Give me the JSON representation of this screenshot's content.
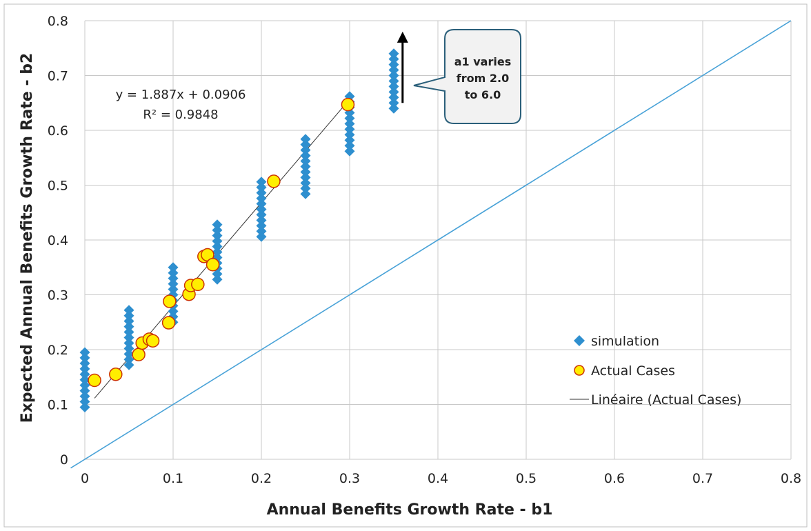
{
  "chart_data": {
    "type": "scatter",
    "xlabel": "Annual Benefits Growth Rate - b1",
    "ylabel": "Expected Annual Benefits Growth Rate - b2",
    "xlim": [
      0,
      0.8
    ],
    "ylim": [
      0,
      0.8
    ],
    "x_ticks": [
      0,
      0.1,
      0.2,
      0.3,
      0.4,
      0.5,
      0.6,
      0.7,
      0.8
    ],
    "y_ticks": [
      0,
      0.1,
      0.2,
      0.3,
      0.4,
      0.5,
      0.6,
      0.7,
      0.8
    ],
    "x_tick_labels": [
      "0",
      "0.1",
      "0.2",
      "0.3",
      "0.4",
      "0.5",
      "0.6",
      "0.7",
      "0.8"
    ],
    "y_tick_labels": [
      "0",
      "0.1",
      "0.2",
      "0.3",
      "0.4",
      "0.5",
      "0.6",
      "0.7",
      "0.8"
    ],
    "grid": true,
    "legend_position": "right-lower",
    "colors": {
      "simulation": "#2e8fcf",
      "actual_fill": "#ffee00",
      "actual_edge": "#cc3300",
      "trendline": "#333333",
      "diagonal": "#4aa3d8",
      "grid": "#c8c8c8",
      "callout_fill": "#f2f2f2",
      "callout_edge": "#2a5f7a"
    },
    "series": [
      {
        "name": "simulation",
        "marker": "diamond",
        "groups": [
          {
            "x": 0,
            "y_from": 0.095,
            "y_to": 0.195,
            "count": 11
          },
          {
            "x": 0.05,
            "y_from": 0.172,
            "y_to": 0.272,
            "count": 11
          },
          {
            "x": 0.1,
            "y_from": 0.25,
            "y_to": 0.35,
            "count": 11
          },
          {
            "x": 0.15,
            "y_from": 0.328,
            "y_to": 0.428,
            "count": 11
          },
          {
            "x": 0.2,
            "y_from": 0.406,
            "y_to": 0.506,
            "count": 11
          },
          {
            "x": 0.25,
            "y_from": 0.484,
            "y_to": 0.584,
            "count": 11
          },
          {
            "x": 0.3,
            "y_from": 0.562,
            "y_to": 0.662,
            "count": 11
          },
          {
            "x": 0.35,
            "y_from": 0.64,
            "y_to": 0.74,
            "count": 11
          }
        ]
      },
      {
        "name": "Actual Cases",
        "marker": "circle",
        "points": [
          [
            0.011,
            0.144
          ],
          [
            0.035,
            0.155
          ],
          [
            0.061,
            0.191
          ],
          [
            0.065,
            0.212
          ],
          [
            0.073,
            0.219
          ],
          [
            0.077,
            0.216
          ],
          [
            0.095,
            0.249
          ],
          [
            0.096,
            0.288
          ],
          [
            0.118,
            0.301
          ],
          [
            0.12,
            0.317
          ],
          [
            0.128,
            0.319
          ],
          [
            0.135,
            0.37
          ],
          [
            0.139,
            0.373
          ],
          [
            0.145,
            0.355
          ],
          [
            0.214,
            0.507
          ],
          [
            0.298,
            0.647
          ]
        ]
      },
      {
        "name": "Linéaire (Actual Cases)",
        "type": "trendline",
        "slope": 1.887,
        "intercept": 0.0906,
        "x_range": [
          0.011,
          0.298
        ]
      }
    ],
    "diagonal": {
      "from": [
        0,
        0
      ],
      "to": [
        0.8,
        0.8
      ]
    },
    "annotations": {
      "equation": "y = 1.887x + 0.0906",
      "r_squared": "R² = 0.9848",
      "callout_lines": [
        "a1 varies",
        "from 2.0",
        "to 6.0"
      ],
      "arrow": {
        "x": 0.36,
        "y_from": 0.65,
        "y_to": 0.78
      }
    }
  }
}
